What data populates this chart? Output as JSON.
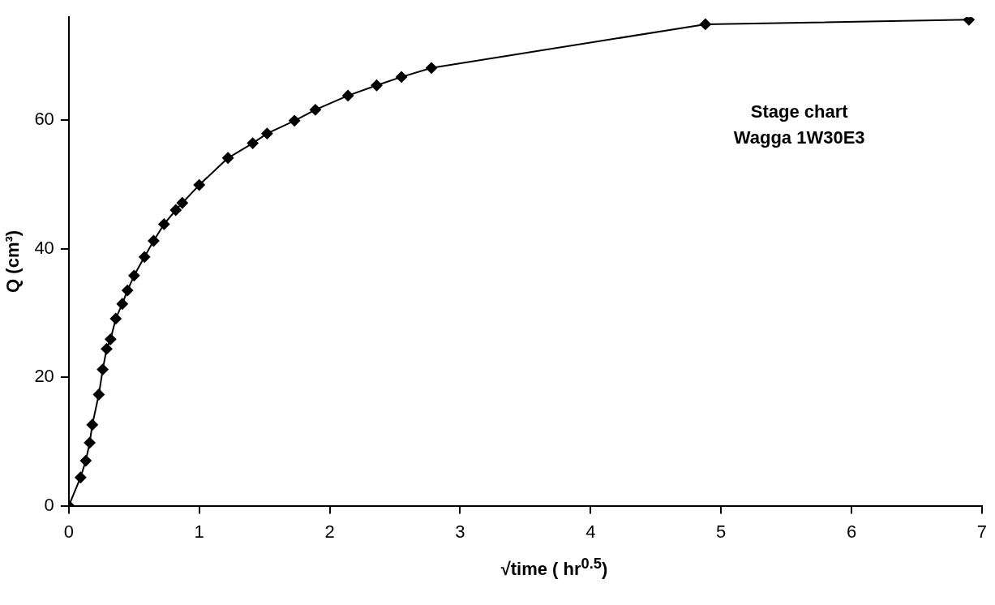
{
  "chart_data": {
    "type": "line",
    "xlabel": "√time ( hr$^{0.5}$)",
    "ylabel": "Q (cm³)",
    "annotations": [
      "Stage chart",
      "Wagga 1W30E3"
    ],
    "series": [
      {
        "color": "#000000",
        "x": [
          0,
          0.09,
          0.13,
          0.16,
          0.18,
          0.23,
          0.26,
          0.29,
          0.32,
          0.36,
          0.41,
          0.45,
          0.5,
          0.58,
          0.65,
          0.73,
          0.82,
          0.87,
          1.0,
          1.22,
          1.41,
          1.52,
          1.73,
          1.89,
          2.14,
          2.36,
          2.55,
          2.78,
          4.88,
          6.9
        ],
        "values": [
          0,
          4.4,
          7.0,
          9.8,
          12.6,
          17.3,
          21.2,
          24.4,
          25.9,
          29.1,
          31.4,
          33.5,
          35.8,
          38.7,
          41.2,
          43.8,
          46.0,
          47.1,
          49.9,
          54.1,
          56.4,
          57.9,
          59.9,
          61.6,
          63.8,
          65.4,
          66.7,
          68.1,
          74.9,
          75.6
        ]
      }
    ],
    "xlim": [
      0,
      7
    ],
    "xticks": [
      0,
      1,
      2,
      3,
      4,
      5,
      6,
      7
    ],
    "ylim": [
      0,
      76
    ],
    "yticks": [
      0,
      20,
      40,
      60
    ],
    "grid": false,
    "legend": false,
    "marker": "diamond",
    "line_style": "solid"
  }
}
